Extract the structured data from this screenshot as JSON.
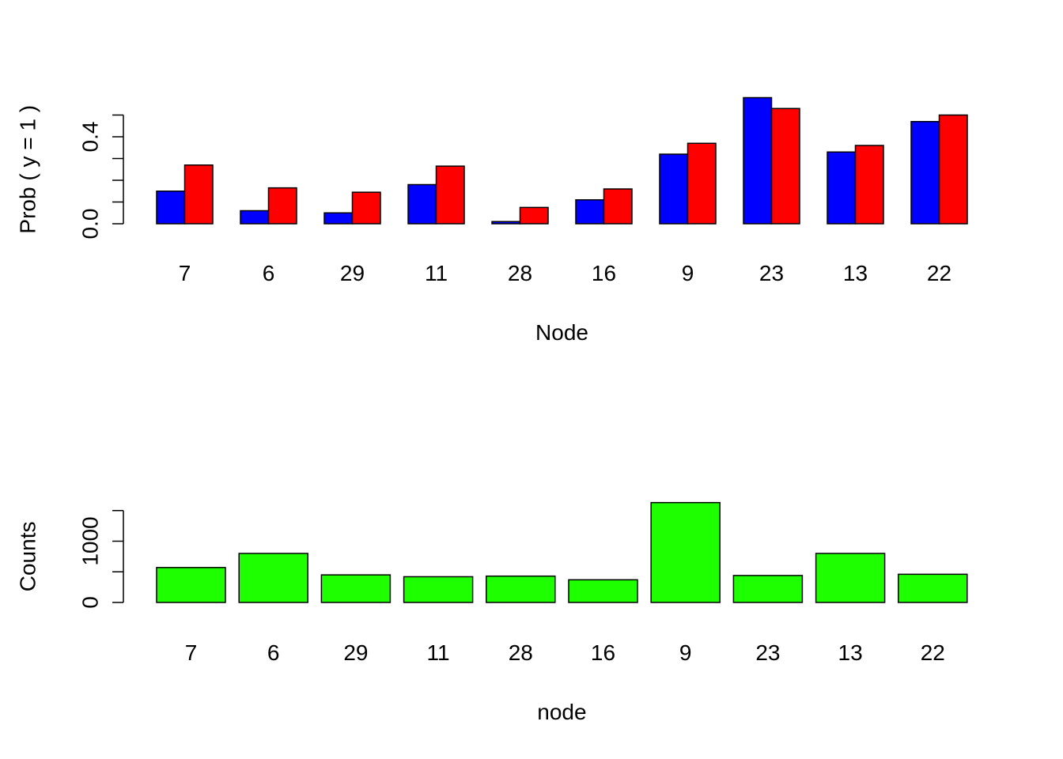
{
  "chart_data": [
    {
      "type": "bar",
      "title": "",
      "xlabel": "Node",
      "ylabel": "Prob ( y = 1 )",
      "ylim": [
        0,
        0.6
      ],
      "yticks": [
        "0.0",
        "0.4"
      ],
      "grid": false,
      "categories": [
        "7",
        "6",
        "29",
        "11",
        "28",
        "16",
        "9",
        "23",
        "13",
        "22"
      ],
      "series": [
        {
          "color": "#0000ff",
          "values": [
            0.15,
            0.06,
            0.05,
            0.18,
            0.01,
            0.11,
            0.32,
            0.58,
            0.33,
            0.47
          ]
        },
        {
          "color": "#ff0000",
          "values": [
            0.27,
            0.165,
            0.145,
            0.265,
            0.075,
            0.16,
            0.37,
            0.53,
            0.36,
            0.5
          ]
        }
      ]
    },
    {
      "type": "bar",
      "title": "",
      "xlabel": "node",
      "ylabel": "Counts",
      "ylim": [
        0,
        1600
      ],
      "yticks": [
        "0",
        "1000"
      ],
      "grid": false,
      "categories": [
        "7",
        "6",
        "29",
        "11",
        "28",
        "16",
        "9",
        "23",
        "13",
        "22"
      ],
      "series": [
        {
          "color": "#1eff00",
          "values": [
            570,
            800,
            450,
            420,
            430,
            370,
            1630,
            440,
            800,
            460
          ]
        }
      ]
    }
  ]
}
